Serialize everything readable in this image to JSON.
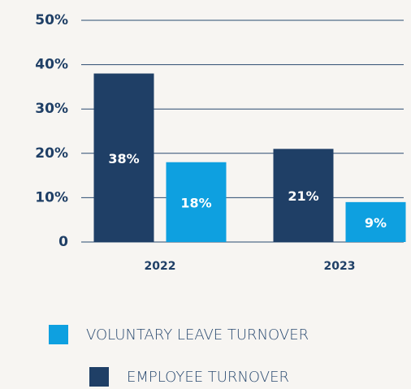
{
  "chart_data": {
    "type": "bar",
    "categories": [
      "2022",
      "2023"
    ],
    "series": [
      {
        "name": "EMPLOYEE TURNOVER",
        "color": "#1f3f66",
        "values": [
          38,
          21
        ],
        "value_labels": [
          "38%",
          "21%"
        ]
      },
      {
        "name": "VOLUNTARY LEAVE TURNOVER",
        "color": "#0ea0e0",
        "values": [
          18,
          9
        ],
        "value_labels": [
          "18%",
          "9%"
        ]
      }
    ],
    "ylim": [
      0,
      50
    ],
    "yticks": [
      0,
      {
        "value": 10,
        "label": "10%"
      },
      {
        "value": 20,
        "label": "20%"
      },
      {
        "value": 30,
        "label": "30%"
      },
      {
        "value": 40,
        "label": "40%"
      },
      {
        "value": 50,
        "label": "50%"
      }
    ],
    "grid": true
  }
}
